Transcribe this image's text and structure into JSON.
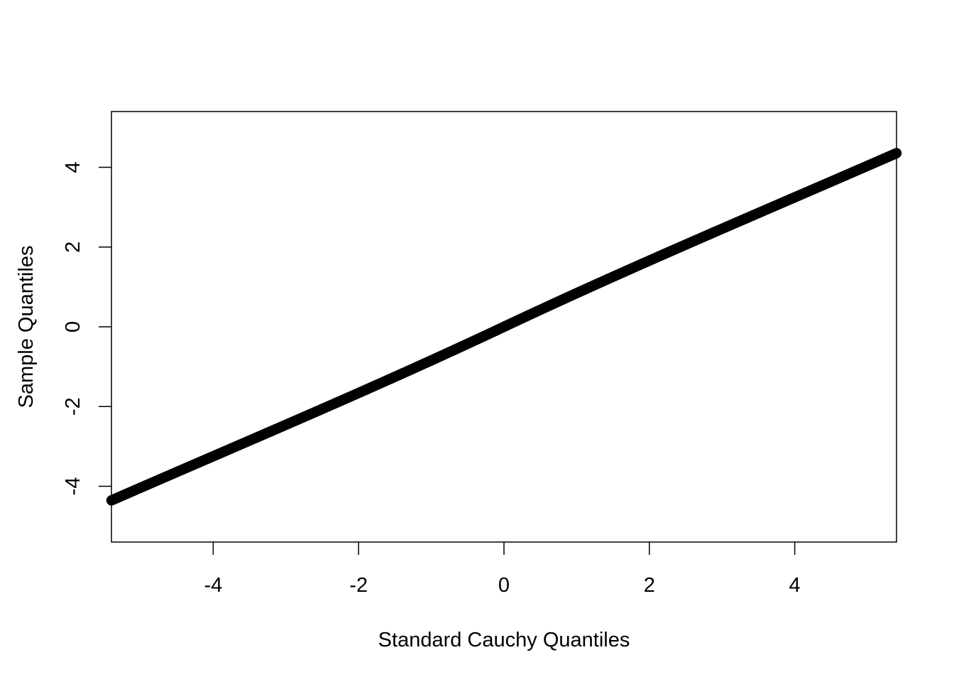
{
  "chart_data": {
    "type": "scatter",
    "title": "",
    "xlabel": "Standard Cauchy Quantiles",
    "ylabel": "Sample Quantiles",
    "xlim": [
      -5.4,
      5.4
    ],
    "ylim": [
      -5.4,
      5.4
    ],
    "xticks": [
      -4,
      -2,
      0,
      2,
      4
    ],
    "yticks": [
      -4,
      -2,
      0,
      2,
      4
    ],
    "xtick_labels": [
      "-4",
      "-2",
      "0",
      "2",
      "4"
    ],
    "ytick_labels": [
      "-4",
      "-2",
      "0",
      "2",
      "4"
    ],
    "grid": false,
    "legend": "none",
    "marker": "open-circle",
    "x_range": [
      -5.4,
      5.4
    ],
    "y_range": [
      -4.15,
      4.5
    ],
    "color": "#000000"
  }
}
